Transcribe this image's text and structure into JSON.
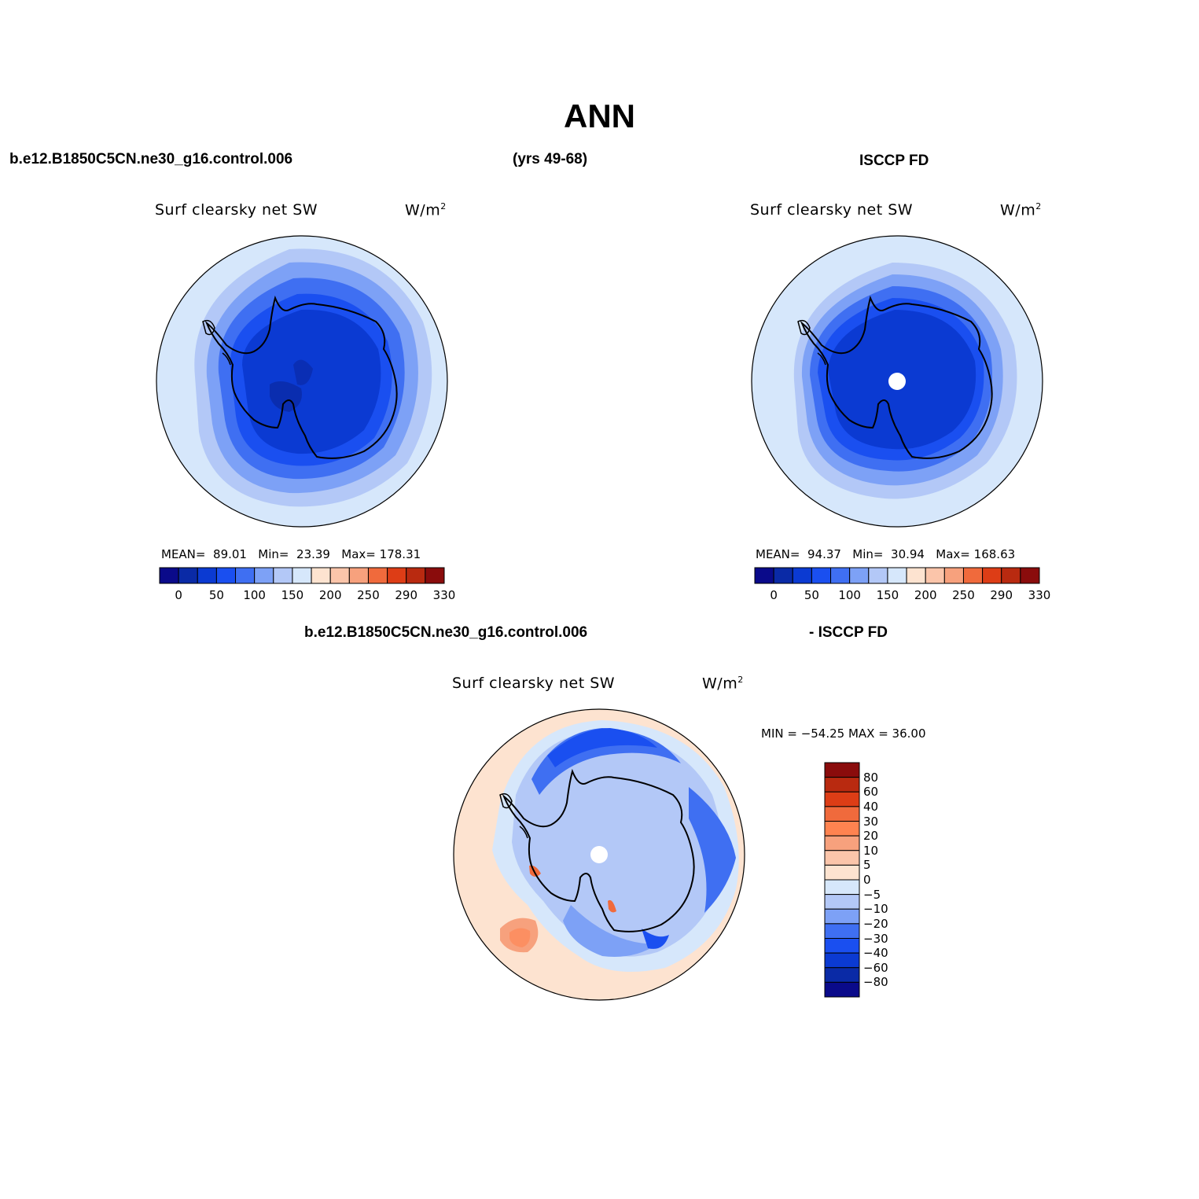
{
  "page": {
    "season": "ANN",
    "case_name": "b.e12.B1850C5CN.ne30_g16.control.006",
    "years": "(yrs 49-68)",
    "obs_name": "ISCCP FD",
    "diff_case_name": "b.e12.B1850C5CN.ne30_g16.control.006",
    "diff_obs_name": "- ISCCP FD"
  },
  "panels": {
    "model": {
      "var_title": "Surf clearsky net SW",
      "units": "W/m",
      "units_exp": "2",
      "stats": {
        "mean_label": "MEAN=",
        "mean": "89.01",
        "min_label": "Min=",
        "min": "23.39",
        "max_label": "Max=",
        "max": "178.31"
      }
    },
    "obs": {
      "var_title": "Surf clearsky net SW",
      "units": "W/m",
      "units_exp": "2",
      "stats": {
        "mean_label": "MEAN=",
        "mean": "94.37",
        "min_label": "Min=",
        "min": "30.94",
        "max_label": "Max=",
        "max": "168.63"
      }
    },
    "diff": {
      "var_title": "Surf clearsky net SW",
      "units": "W/m",
      "units_exp": "2",
      "minmax_text": "MIN = −54.25 MAX =  36.00"
    }
  },
  "colorbar_abs": {
    "colors": [
      "#0a0a8a",
      "#0a2aa6",
      "#0b3ad2",
      "#1a4ff0",
      "#3f6ff2",
      "#7da1f6",
      "#b3c8f7",
      "#d6e7fb",
      "#fde3d0",
      "#fbc5aa",
      "#f7a17d",
      "#f06a3c",
      "#dd3d16",
      "#b92a10",
      "#8a0c0c"
    ],
    "labels": [
      "0",
      "50",
      "100",
      "150",
      "200",
      "250",
      "290",
      "330"
    ]
  },
  "colorbar_diff": {
    "colors": [
      "#8a0c0c",
      "#b92a10",
      "#dd3d16",
      "#f06a3c",
      "#ff8350",
      "#f7a17d",
      "#fbc5aa",
      "#fde3d0",
      "#d6e7fb",
      "#b3c8f7",
      "#7da1f6",
      "#3f6ff2",
      "#1a4ff0",
      "#0b3ad2",
      "#0a2aa6",
      "#0a0a8a"
    ],
    "labels": [
      "80",
      "60",
      "40",
      "30",
      "20",
      "10",
      "5",
      "0",
      "−5",
      "−10",
      "−20",
      "−30",
      "−40",
      "−60",
      "−80"
    ]
  },
  "map_style": {
    "ocean_outer_light": "#d6e7fb",
    "land_fill": "#0b3ad2",
    "coast_color": "#000000"
  }
}
